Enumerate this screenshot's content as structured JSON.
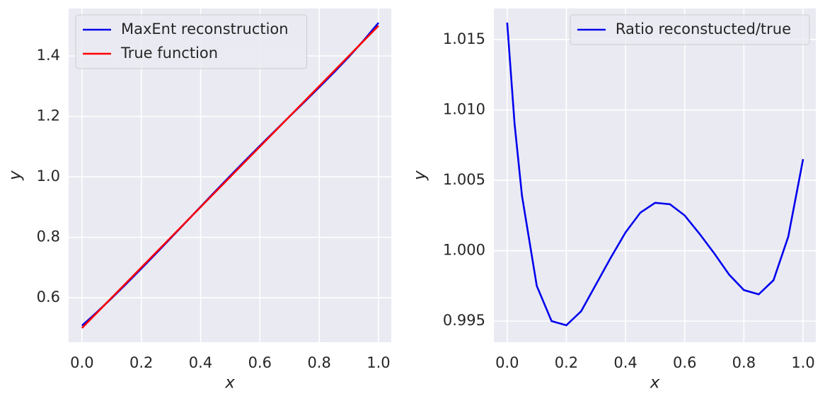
{
  "chart_data": [
    {
      "type": "line",
      "xlabel": "x",
      "ylabel": "y",
      "legend": "upper left",
      "grid": true,
      "x": [
        0,
        0.025,
        0.05,
        0.1,
        0.15,
        0.2,
        0.25,
        0.3,
        0.35,
        0.4,
        0.45,
        0.5,
        0.55,
        0.6,
        0.65,
        0.7,
        0.75,
        0.8,
        0.85,
        0.9,
        0.95,
        1.0
      ],
      "series": [
        {
          "name": "MaxEnt reconstruction",
          "color": "#0000ee",
          "values": [
            0.5081,
            0.5297,
            0.5521,
            0.5985,
            0.6468,
            0.6963,
            0.7468,
            0.7981,
            0.8496,
            0.9012,
            0.9526,
            1.0034,
            1.0535,
            1.1028,
            1.1514,
            1.1998,
            1.2479,
            1.2964,
            1.3458,
            1.3971,
            1.4515,
            1.5098
          ]
        },
        {
          "name": "True function",
          "color": "#ff0000",
          "values": [
            0.5,
            0.525,
            0.55,
            0.6,
            0.65,
            0.7,
            0.75,
            0.8,
            0.85,
            0.9,
            0.95,
            1.0,
            1.05,
            1.1,
            1.15,
            1.2,
            1.25,
            1.3,
            1.35,
            1.4,
            1.45,
            1.5
          ]
        }
      ],
      "xlim": [
        -0.045,
        1.043
      ],
      "ylim": [
        0.453,
        1.557
      ],
      "xticks": [
        {
          "value": 0,
          "label": "0.0"
        },
        0.2,
        0.4,
        0.6,
        0.8,
        {
          "value": 1,
          "label": "1.0"
        }
      ],
      "yticks": [
        {
          "value": 0.6,
          "label": "0.6"
        },
        {
          "value": 0.8,
          "label": "0.8"
        },
        {
          "value": 1,
          "label": "1.0"
        },
        1.2,
        1.4
      ]
    },
    {
      "type": "line",
      "xlabel": "x",
      "ylabel": "y",
      "legend": "upper right",
      "grid": true,
      "x": [
        0,
        0.025,
        0.05,
        0.1,
        0.15,
        0.2,
        0.25,
        0.3,
        0.35,
        0.4,
        0.45,
        0.5,
        0.55,
        0.6,
        0.65,
        0.7,
        0.75,
        0.8,
        0.85,
        0.9,
        0.95,
        1.0
      ],
      "series": [
        {
          "name": "Ratio reconstucted/true",
          "color": "#0000ee",
          "values": [
            1.0162,
            1.009,
            1.0039,
            0.9975,
            0.995,
            0.9947,
            0.9957,
            0.9976,
            0.9995,
            1.0013,
            1.0027,
            1.0034,
            1.0033,
            1.0025,
            1.0012,
            0.9998,
            0.9983,
            0.9972,
            0.9969,
            0.9979,
            1.001,
            1.0065
          ]
        }
      ],
      "xlim": [
        -0.045,
        1.043
      ],
      "ylim": [
        0.9935,
        1.0172
      ],
      "xticks": [
        {
          "value": 0,
          "label": "0.0"
        },
        0.2,
        0.4,
        0.6,
        0.8,
        {
          "value": 1,
          "label": "1.0"
        }
      ],
      "yticks": [
        0.995,
        {
          "value": 1,
          "label": "1.000"
        },
        1.005,
        {
          "value": 1.01,
          "label": "1.010"
        },
        1.015
      ]
    }
  ]
}
